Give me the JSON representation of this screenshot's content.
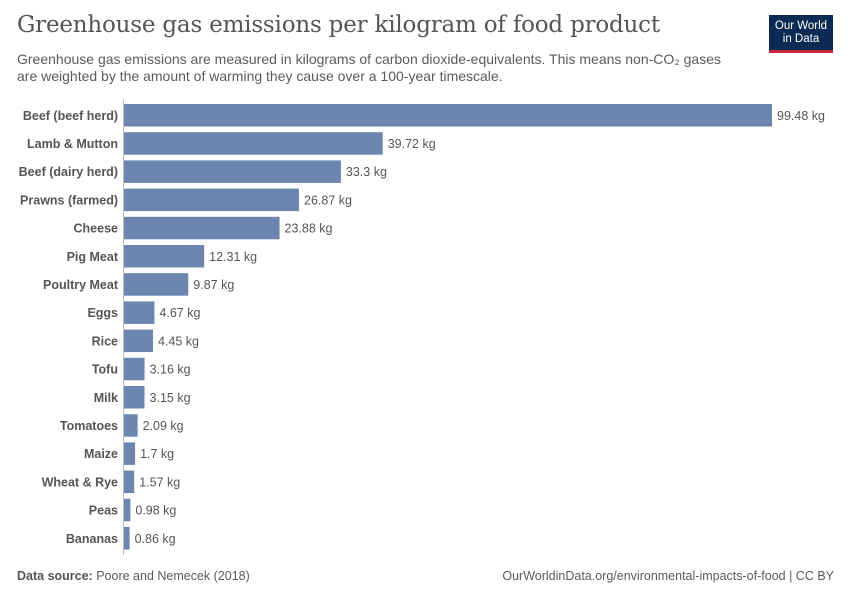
{
  "header": {
    "title": "Greenhouse gas emissions per kilogram of food product",
    "subtitle": "Greenhouse gas emissions are measured in kilograms of carbon dioxide-equivalents. This means non-CO₂ gases are weighted by the amount of warming they cause over a 100-year timescale."
  },
  "logo": {
    "line1": "Our World",
    "line2": "in Data"
  },
  "footer": {
    "source_label": "Data source:",
    "source": "Poore and Nemecek (2018)",
    "link": "OurWorldinData.org/environmental-impacts-of-food | CC BY"
  },
  "colors": {
    "bar": "#6d86b0",
    "logo_bg": "#0b2b54",
    "logo_accent": "#c8283a"
  },
  "chart_data": {
    "type": "bar",
    "orientation": "horizontal",
    "unit": "kg",
    "categories": [
      "Beef (beef herd)",
      "Lamb & Mutton",
      "Beef (dairy herd)",
      "Prawns (farmed)",
      "Cheese",
      "Pig Meat",
      "Poultry Meat",
      "Eggs",
      "Rice",
      "Tofu",
      "Milk",
      "Tomatoes",
      "Maize",
      "Wheat & Rye",
      "Peas",
      "Bananas"
    ],
    "values": [
      99.48,
      39.72,
      33.3,
      26.87,
      23.88,
      12.31,
      9.87,
      4.67,
      4.45,
      3.16,
      3.15,
      2.09,
      1.7,
      1.57,
      0.98,
      0.86
    ],
    "value_labels": [
      "99.48 kg",
      "39.72 kg",
      "33.3 kg",
      "26.87 kg",
      "23.88 kg",
      "12.31 kg",
      "9.87 kg",
      "4.67 kg",
      "4.45 kg",
      "3.16 kg",
      "3.15 kg",
      "2.09 kg",
      "1.7 kg",
      "1.57 kg",
      "0.98 kg",
      "0.86 kg"
    ],
    "xlim": [
      0,
      99.48
    ],
    "grid": false,
    "legend": "none"
  }
}
